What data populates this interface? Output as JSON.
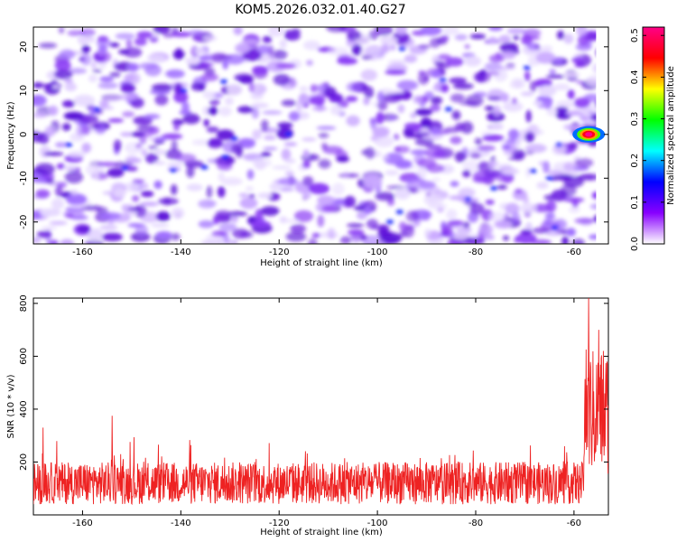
{
  "chart_data": [
    {
      "type": "heatmap",
      "title": "KOM5.2026.032.01.40.G27",
      "xlabel": "Height of straight line (km)",
      "ylabel": "Frequency (Hz)",
      "xlim": [
        -170,
        -53
      ],
      "ylim": [
        -25,
        24.5
      ],
      "xticks": [
        -160,
        -140,
        -120,
        -100,
        -80,
        -60
      ],
      "yticks": [
        -20,
        -10,
        0,
        10,
        20
      ],
      "colorbar": {
        "label": "Normalized spectral amplitude",
        "range": [
          0,
          0.52
        ],
        "ticks": [
          0.0,
          0.1,
          0.2,
          0.3,
          0.4,
          0.5
        ],
        "tick_labels": [
          "0.0",
          "0.1",
          "0.2",
          "0.3",
          "0.4",
          "0.5"
        ],
        "colors": [
          "#ffffff",
          "#8800ff",
          "#0000ff",
          "#00ffff",
          "#00ff00",
          "#ffff00",
          "#ff0000",
          "#ff0088"
        ]
      },
      "hotspot": {
        "x": -57,
        "y": 0,
        "value": 0.52
      },
      "background_level": [
        0.0,
        0.12
      ]
    },
    {
      "type": "line",
      "xlabel": "Height of straight line (km)",
      "ylabel": "SNR (10 * v/v)",
      "xlim": [
        -170,
        -53
      ],
      "ylim": [
        0,
        820
      ],
      "xticks": [
        -160,
        -140,
        -120,
        -100,
        -80,
        -60
      ],
      "yticks": [
        200,
        400,
        600,
        800
      ],
      "series": [
        {
          "name": "SNR",
          "color": "#ee2222",
          "baseline_range": [
            40,
            200
          ],
          "sample_peaks": [
            {
              "x": -168,
              "y": 330
            },
            {
              "x": -154,
              "y": 375
            },
            {
              "x": -57,
              "y": 820
            },
            {
              "x": -55,
              "y": 700
            },
            {
              "x": -54,
              "y": 620
            }
          ]
        }
      ]
    }
  ]
}
